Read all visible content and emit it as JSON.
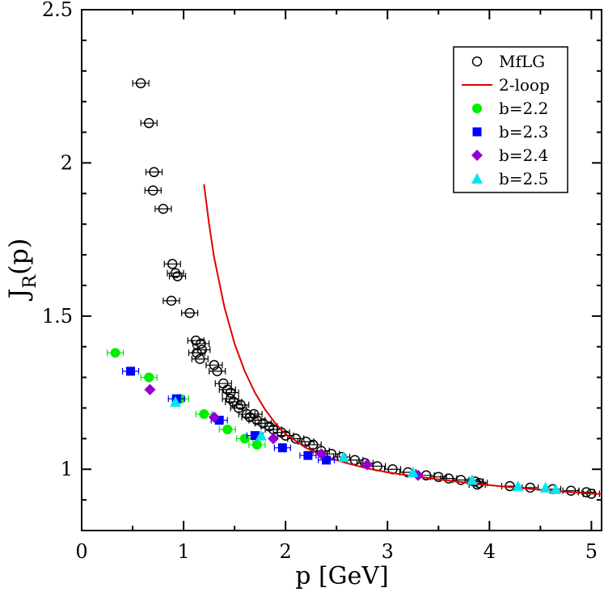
{
  "chart_data": {
    "type": "scatter",
    "title": "",
    "xlabel": "p [GeV]",
    "ylabel_main": "J",
    "ylabel_sub": "R",
    "ylabel_suffix": "(p)",
    "xlim": [
      0,
      5.1
    ],
    "ylim": [
      0.8,
      2.5
    ],
    "xticks": [
      0,
      1,
      2,
      3,
      4,
      5
    ],
    "xtick_labels": [
      "0",
      "1",
      "2",
      "3",
      "4",
      "5"
    ],
    "yticks": [
      1.0,
      1.5,
      2.0,
      2.5
    ],
    "ytick_labels": [
      "1",
      "1.5",
      "2",
      "2.5"
    ],
    "grid": false,
    "legend_position": "top-right",
    "series": [
      {
        "name": "MfLG",
        "marker": "open-circle",
        "color": "#000000",
        "points": [
          [
            0.58,
            2.26
          ],
          [
            0.66,
            2.13
          ],
          [
            0.71,
            1.97
          ],
          [
            0.7,
            1.91
          ],
          [
            0.8,
            1.85
          ],
          [
            0.89,
            1.67
          ],
          [
            0.92,
            1.64
          ],
          [
            0.94,
            1.63
          ],
          [
            0.88,
            1.55
          ],
          [
            1.06,
            1.51
          ],
          [
            1.12,
            1.42
          ],
          [
            1.17,
            1.41
          ],
          [
            1.18,
            1.39
          ],
          [
            1.13,
            1.38
          ],
          [
            1.16,
            1.36
          ],
          [
            1.3,
            1.34
          ],
          [
            1.33,
            1.32
          ],
          [
            1.39,
            1.28
          ],
          [
            1.43,
            1.26
          ],
          [
            1.46,
            1.25
          ],
          [
            1.46,
            1.23
          ],
          [
            1.49,
            1.22
          ],
          [
            1.56,
            1.21
          ],
          [
            1.54,
            1.2
          ],
          [
            1.62,
            1.18
          ],
          [
            1.69,
            1.18
          ],
          [
            1.65,
            1.17
          ],
          [
            1.72,
            1.16
          ],
          [
            1.78,
            1.15
          ],
          [
            1.84,
            1.14
          ],
          [
            1.88,
            1.13
          ],
          [
            1.96,
            1.12
          ],
          [
            2.0,
            1.11
          ],
          [
            2.1,
            1.1
          ],
          [
            2.2,
            1.09
          ],
          [
            2.27,
            1.08
          ],
          [
            2.35,
            1.06
          ],
          [
            2.45,
            1.05
          ],
          [
            2.55,
            1.04
          ],
          [
            2.68,
            1.03
          ],
          [
            2.78,
            1.02
          ],
          [
            2.9,
            1.01
          ],
          [
            3.05,
            1.0
          ],
          [
            3.2,
            0.99
          ],
          [
            3.38,
            0.98
          ],
          [
            3.5,
            0.975
          ],
          [
            3.6,
            0.97
          ],
          [
            3.72,
            0.965
          ],
          [
            3.86,
            0.96
          ],
          [
            3.9,
            0.955
          ],
          [
            3.88,
            0.95
          ],
          [
            4.2,
            0.945
          ],
          [
            4.4,
            0.94
          ],
          [
            4.62,
            0.935
          ],
          [
            4.8,
            0.93
          ],
          [
            4.95,
            0.925
          ],
          [
            5.0,
            0.92
          ]
        ]
      },
      {
        "name": "2-loop",
        "marker": "line",
        "color": "#e00000",
        "points": [
          [
            1.2,
            1.93
          ],
          [
            1.25,
            1.8
          ],
          [
            1.3,
            1.69
          ],
          [
            1.4,
            1.53
          ],
          [
            1.5,
            1.41
          ],
          [
            1.6,
            1.32
          ],
          [
            1.7,
            1.25
          ],
          [
            1.8,
            1.195
          ],
          [
            1.9,
            1.15
          ],
          [
            2.0,
            1.115
          ],
          [
            2.2,
            1.07
          ],
          [
            2.4,
            1.04
          ],
          [
            2.6,
            1.02
          ],
          [
            2.8,
            1.003
          ],
          [
            3.0,
            0.99
          ],
          [
            3.25,
            0.978
          ],
          [
            3.5,
            0.967
          ],
          [
            3.75,
            0.957
          ],
          [
            4.0,
            0.948
          ],
          [
            4.25,
            0.94
          ],
          [
            4.5,
            0.933
          ],
          [
            4.75,
            0.926
          ],
          [
            5.0,
            0.921
          ],
          [
            5.1,
            0.919
          ]
        ]
      },
      {
        "name": "b=2.2",
        "marker": "filled-circle",
        "color": "#00ee00",
        "points": [
          [
            0.33,
            1.38
          ],
          [
            0.66,
            1.3
          ],
          [
            0.97,
            1.23
          ],
          [
            1.2,
            1.18
          ],
          [
            1.43,
            1.13
          ],
          [
            1.6,
            1.1
          ],
          [
            1.72,
            1.08
          ]
        ]
      },
      {
        "name": "b=2.3",
        "marker": "filled-square",
        "color": "#0000ff",
        "points": [
          [
            0.48,
            1.32
          ],
          [
            0.93,
            1.23
          ],
          [
            1.35,
            1.16
          ],
          [
            1.7,
            1.11
          ],
          [
            1.97,
            1.07
          ],
          [
            2.22,
            1.045
          ],
          [
            2.4,
            1.03
          ]
        ]
      },
      {
        "name": "b=2.4",
        "marker": "filled-diamond",
        "color": "#9400d3",
        "points": [
          [
            0.67,
            1.26
          ],
          [
            1.3,
            1.17
          ],
          [
            1.88,
            1.1
          ],
          [
            2.35,
            1.05
          ],
          [
            2.8,
            1.015
          ],
          [
            3.3,
            0.98
          ]
        ]
      },
      {
        "name": "b=2.5",
        "marker": "filled-triangle",
        "color": "#00e5ee",
        "points": [
          [
            0.92,
            1.22
          ],
          [
            1.76,
            1.11
          ],
          [
            2.57,
            1.04
          ],
          [
            3.25,
            0.99
          ],
          [
            3.83,
            0.965
          ],
          [
            4.28,
            0.945
          ],
          [
            4.55,
            0.94
          ],
          [
            4.65,
            0.935
          ]
        ]
      }
    ]
  }
}
